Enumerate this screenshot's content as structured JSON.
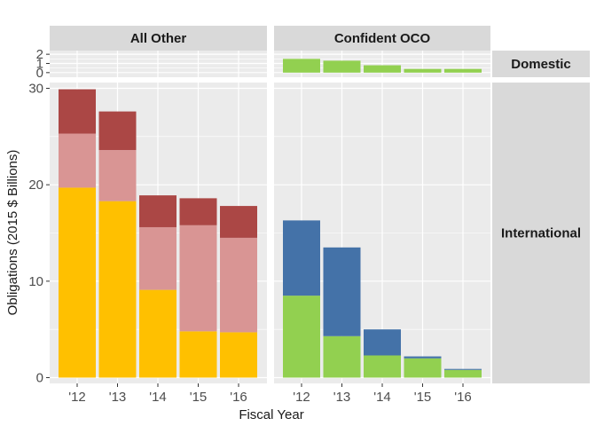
{
  "chart_data": {
    "type": "bar",
    "stacked": true,
    "xlabel": "Fiscal Year",
    "ylabel": "Obligations (2015 $ Billions)",
    "categories": [
      "'12",
      "'13",
      "'14",
      "'15",
      "'16"
    ],
    "facet_columns": [
      "All Other",
      "Confident OCO"
    ],
    "facet_rows": [
      "Domestic",
      "International"
    ],
    "rows": [
      {
        "name": "Domestic",
        "ylim": [
          -0.5,
          2.4
        ],
        "yticks": [
          0,
          1,
          2
        ]
      },
      {
        "name": "International",
        "ylim": [
          -0.6,
          30.6
        ],
        "yticks": [
          0,
          10,
          20,
          30
        ]
      }
    ],
    "panels": [
      {
        "row": "Domestic",
        "column": "All Other",
        "series": []
      },
      {
        "row": "Domestic",
        "column": "Confident OCO",
        "series": [
          {
            "color": "#92d050",
            "values": [
              1.5,
              1.3,
              0.8,
              0.4,
              0.4
            ]
          }
        ]
      },
      {
        "row": "International",
        "column": "All Other",
        "series": [
          {
            "color": "#ffc000",
            "values": [
              19.7,
              18.3,
              9.1,
              4.8,
              4.7
            ]
          },
          {
            "color": "#d99594",
            "values": [
              5.6,
              5.3,
              6.5,
              11.0,
              9.8
            ]
          },
          {
            "color": "#ab4745",
            "values": [
              4.6,
              4.0,
              3.3,
              2.8,
              3.3
            ]
          }
        ]
      },
      {
        "row": "International",
        "column": "Confident OCO",
        "series": [
          {
            "color": "#92d050",
            "values": [
              8.5,
              4.3,
              2.3,
              2.0,
              0.8
            ]
          },
          {
            "color": "#4472a8",
            "values": [
              7.8,
              9.2,
              2.7,
              0.2,
              0.1
            ]
          }
        ]
      }
    ],
    "grid": true,
    "panel_background": "#ebebeb",
    "strip_background": "#d9d9d9"
  }
}
